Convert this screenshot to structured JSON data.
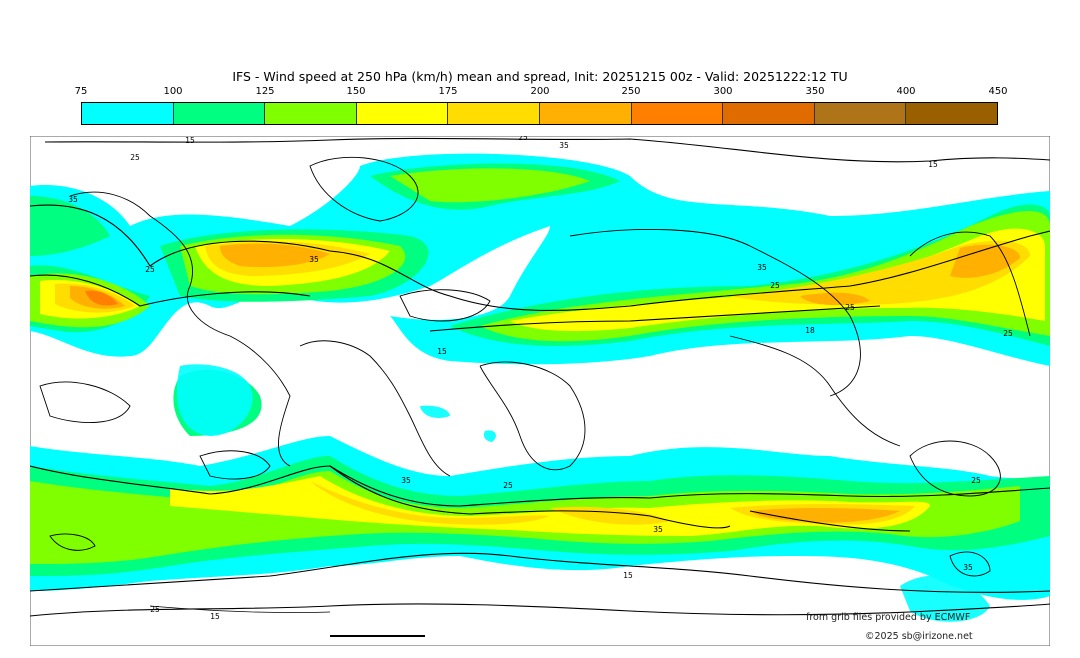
{
  "title": "IFS - Wind speed at 250 hPa (km/h) mean and spread, Init: 20251215 00z - Valid: 20251222:12 TU",
  "colorbar": {
    "ticks": [
      "75",
      "100",
      "125",
      "150",
      "175",
      "200",
      "250",
      "300",
      "350",
      "400",
      "450"
    ],
    "colors": [
      "#00ffff",
      "#00ff80",
      "#80ff00",
      "#ffff00",
      "#ffdd00",
      "#ffb000",
      "#ff8000",
      "#e06c00",
      "#b07418",
      "#9a6000"
    ]
  },
  "contour_labels": [
    "15",
    "25",
    "35",
    "25",
    "15",
    "35",
    "25",
    "25",
    "35",
    "18",
    "25",
    "15",
    "35",
    "25",
    "35",
    "25",
    "15",
    "35",
    "35",
    "25",
    "25",
    "15"
  ],
  "credits": {
    "source": "from grib files provided by ECMWF",
    "copyright": "©2025 sb@irizone.net"
  }
}
